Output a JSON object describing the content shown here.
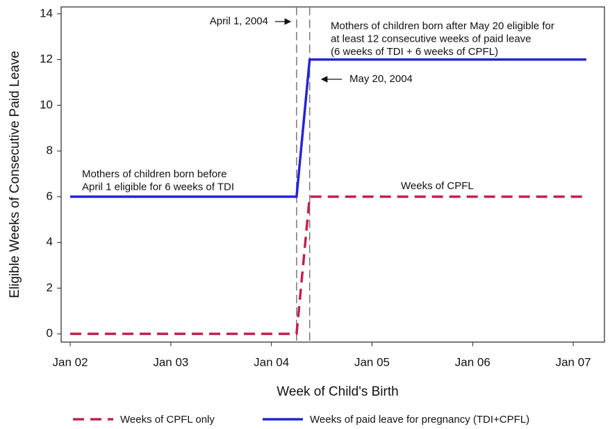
{
  "chart_data": {
    "type": "line",
    "x_label": "Week of Child's Birth",
    "y_label": "Eligible Weeks of Consecutive Paid Leave",
    "x": [
      2002,
      2004.25,
      2004.38,
      2007.13
    ],
    "series": [
      {
        "name": "Weeks of CPFL only",
        "color": "#c0224a",
        "style": "dashed",
        "values": [
          0,
          0,
          6,
          6
        ]
      },
      {
        "name": "Weeks of paid leave for pregnancy (TDI+CPFL)",
        "color": "#2424d6",
        "style": "solid",
        "values": [
          6,
          6,
          12,
          12
        ]
      }
    ],
    "vlines": [
      2004.25,
      2004.38
    ],
    "xlim": [
      2001.91,
      2007.31
    ],
    "ylim": [
      -0.36,
      14.3
    ],
    "xticks": [
      {
        "value": 2002,
        "label": "Jan 02"
      },
      {
        "value": 2003,
        "label": "Jan 03"
      },
      {
        "value": 2004,
        "label": "Jan 04"
      },
      {
        "value": 2005,
        "label": "Jan 05"
      },
      {
        "value": 2006,
        "label": "Jan 06"
      },
      {
        "value": 2007,
        "label": "Jan 07"
      }
    ],
    "yticks": [
      0,
      2,
      4,
      6,
      8,
      10,
      12,
      14
    ],
    "annotations": [
      [
        "April 1, 2004"
      ],
      [
        "Mothers of children born after May 20 eligible for",
        "at least 12 consecutive weeks of paid leave",
        "(6 weeks of TDI + 6 weeks of CPFL)"
      ],
      [
        "May 20, 2004"
      ],
      [
        "Mothers of children born before",
        "April 1 eligible for 6 weeks of TDI"
      ],
      [
        "Weeks of CPFL"
      ]
    ]
  }
}
